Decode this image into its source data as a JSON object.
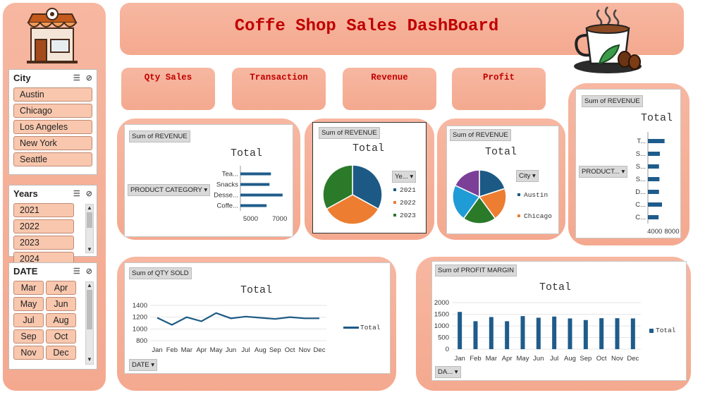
{
  "title": "Coffe Shop Sales DashBoard",
  "colors": {
    "accent": "#c00000",
    "peach": "#f4a98f",
    "bar": "#1f5c8b",
    "blue": "#1c5a85",
    "orange": "#ed7d31",
    "green": "#2a7a2a"
  },
  "kpis": [
    {
      "label": "Qty Sales"
    },
    {
      "label": "Transaction"
    },
    {
      "label": "Revenue"
    },
    {
      "label": "Profit"
    }
  ],
  "slicers": {
    "city": {
      "title": "City",
      "items": [
        "Austin",
        "Chicago",
        "Los Angeles",
        "New York",
        "Seattle"
      ]
    },
    "years": {
      "title": "Years",
      "items": [
        "2021",
        "2022",
        "2023",
        "2024"
      ]
    },
    "date": {
      "title": "DATE",
      "items": [
        "Mar",
        "Apr",
        "May",
        "Jun",
        "Jul",
        "Aug",
        "Sep",
        "Oct",
        "Nov",
        "Dec"
      ]
    }
  },
  "chart_data": [
    {
      "type": "bar",
      "orientation": "horizontal",
      "field_label": "Sum of REVENUE",
      "row_field": "PRODUCT CATEGORY",
      "title": "Total",
      "categories": [
        "Tea...",
        "Snacks",
        "Desse...",
        "Coffe..."
      ],
      "values": [
        6400,
        6300,
        7200,
        6100
      ],
      "xticks": [
        "5000",
        "7000"
      ],
      "xlim": [
        4300,
        7500
      ]
    },
    {
      "type": "pie",
      "field_label": "Sum of REVENUE",
      "legend_field": "Ye...",
      "title": "Total",
      "labels": [
        "2021",
        "2022",
        "2023"
      ],
      "values": [
        33,
        34,
        33
      ],
      "colors": [
        "#1c5a85",
        "#ed7d31",
        "#2a7a2a"
      ]
    },
    {
      "type": "pie",
      "field_label": "Sum of REVENUE",
      "legend_field": "City",
      "title": "Total",
      "labels": [
        "Austin",
        "Chicago",
        "",
        "",
        ""
      ],
      "legend_labels": [
        "Austin",
        "Chicago"
      ],
      "values": [
        20,
        20,
        20,
        22,
        18
      ],
      "colors": [
        "#1c5a85",
        "#ed7d31",
        "#2a7a2a",
        "#1f9bd6",
        "#7b3f98"
      ]
    },
    {
      "type": "bar",
      "orientation": "horizontal",
      "field_label": "Sum of REVENUE",
      "row_field": "PRODUCT...",
      "title": "Total",
      "categories": [
        "T...",
        "S...",
        "S...",
        "S...",
        "D...",
        "C...",
        "C..."
      ],
      "values": [
        6300,
        5200,
        5000,
        5100,
        5000,
        5700,
        4900
      ],
      "xticks": [
        "4000",
        "8000"
      ],
      "xlim": [
        2400,
        9000
      ]
    },
    {
      "type": "line",
      "field_label": "Sum of QTY SOLD",
      "axis_field": "DATE",
      "title": "Total",
      "x": [
        "Jan",
        "Feb",
        "Mar",
        "Apr",
        "May",
        "Jun",
        "Jul",
        "Aug",
        "Sep",
        "Oct",
        "Nov",
        "Dec"
      ],
      "series": [
        {
          "name": "Total",
          "values": [
            1190,
            1070,
            1200,
            1130,
            1270,
            1180,
            1210,
            1190,
            1170,
            1200,
            1180,
            1180
          ]
        }
      ],
      "yticks": [
        "1400",
        "1200",
        "1000",
        "800"
      ],
      "ylim": [
        800,
        1400
      ]
    },
    {
      "type": "bar",
      "field_label": "Sum of PROFIT MARGIN",
      "axis_field": "DA...",
      "title": "Total",
      "categories": [
        "Jan",
        "Feb",
        "Mar",
        "Apr",
        "May",
        "Jun",
        "Jul",
        "Aug",
        "Sep",
        "Oct",
        "Nov",
        "Dec"
      ],
      "series": [
        {
          "name": "Total",
          "values": [
            1600,
            1200,
            1380,
            1200,
            1420,
            1350,
            1400,
            1320,
            1250,
            1330,
            1330,
            1320
          ]
        }
      ],
      "yticks": [
        "2000",
        "1500",
        "1000",
        "500",
        "0"
      ],
      "ylim": [
        0,
        2000
      ]
    }
  ]
}
